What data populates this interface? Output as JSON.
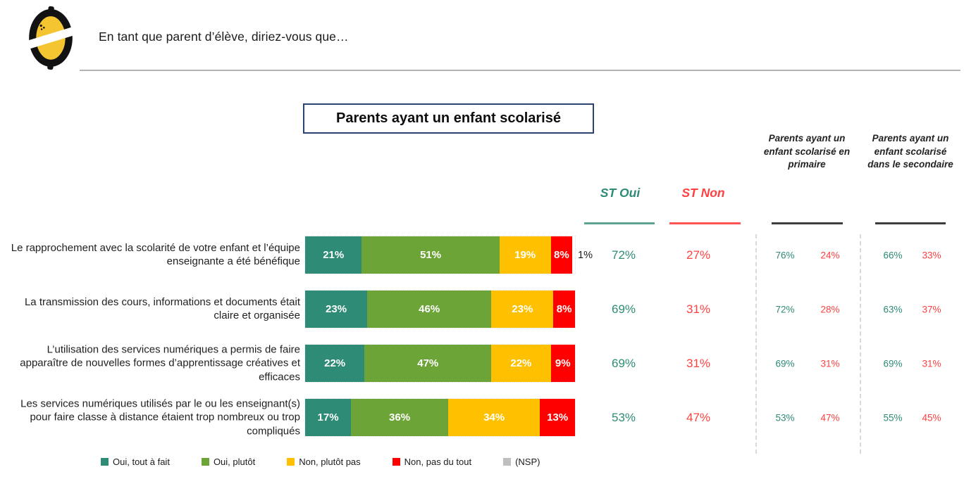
{
  "header": {
    "question": "En tant que parent d’élève, diriez-vous que…",
    "logo": "opinionway-lemon-logo"
  },
  "title_box": "Parents ayant un enfant scolarisé",
  "columns": {
    "st_oui": {
      "label": "ST Oui",
      "color": "#2E8B76"
    },
    "st_non": {
      "label": "ST Non",
      "color": "#FF4040"
    },
    "primaire": {
      "label": "Parents ayant un enfant scolarisé en primaire"
    },
    "secondaire": {
      "label": "Parents ayant un enfant scolarisé dans le secondaire"
    }
  },
  "colors": {
    "oui_tout_a_fait": "#2E8B76",
    "oui_plutot": "#6CA437",
    "non_plutot_pas": "#FFC000",
    "non_pas_du_tout": "#FF0000",
    "nsp": "#BFBFBF",
    "title_border": "#2A4370",
    "divider": "#b3b3b3"
  },
  "chart_data": {
    "type": "bar",
    "variant": "stacked-horizontal",
    "unit": "%",
    "xlim": [
      0,
      100
    ],
    "legend_position": "bottom",
    "categories": [
      "Le rapprochement avec la scolarité de votre enfant et l’équipe enseignante a été bénéfique",
      "La transmission des cours, informations et documents était claire et organisée",
      "L’utilisation des services numériques a permis de faire apparaître de nouvelles formes d’apprentissage créatives et efficaces",
      "Les services numériques utilisés par le ou les enseignant(s) pour faire classe à distance étaient trop nombreux ou trop compliqués"
    ],
    "series": [
      {
        "name": "Oui, tout à fait",
        "color": "#2E8B76",
        "values": [
          21,
          23,
          22,
          17
        ]
      },
      {
        "name": "Oui, plutôt",
        "color": "#6CA437",
        "values": [
          51,
          46,
          47,
          36
        ]
      },
      {
        "name": "Non, plutôt pas",
        "color": "#FFC000",
        "values": [
          19,
          23,
          22,
          34
        ]
      },
      {
        "name": "Non, pas du tout",
        "color": "#FF0000",
        "values": [
          8,
          8,
          9,
          13
        ]
      },
      {
        "name": "(NSP)",
        "color": "#BFBFBF",
        "values": [
          1,
          0,
          0,
          0
        ]
      }
    ],
    "summary": {
      "st_oui": {
        "label": "ST Oui",
        "color": "#2E8B76",
        "values": [
          72,
          69,
          69,
          53
        ]
      },
      "st_non": {
        "label": "ST Non",
        "color": "#FF4040",
        "values": [
          27,
          31,
          31,
          47
        ]
      },
      "primaire_oui": {
        "label": "Parents primaire — Oui",
        "color": "#2E8B76",
        "values": [
          76,
          72,
          69,
          53
        ]
      },
      "primaire_non": {
        "label": "Parents primaire — Non",
        "color": "#FF4040",
        "values": [
          24,
          28,
          31,
          47
        ]
      },
      "secondaire_oui": {
        "label": "Parents secondaire — Oui",
        "color": "#2E8B76",
        "values": [
          66,
          63,
          69,
          55
        ]
      },
      "secondaire_non": {
        "label": "Parents secondaire — Non",
        "color": "#FF4040",
        "values": [
          33,
          37,
          31,
          45
        ]
      }
    }
  }
}
